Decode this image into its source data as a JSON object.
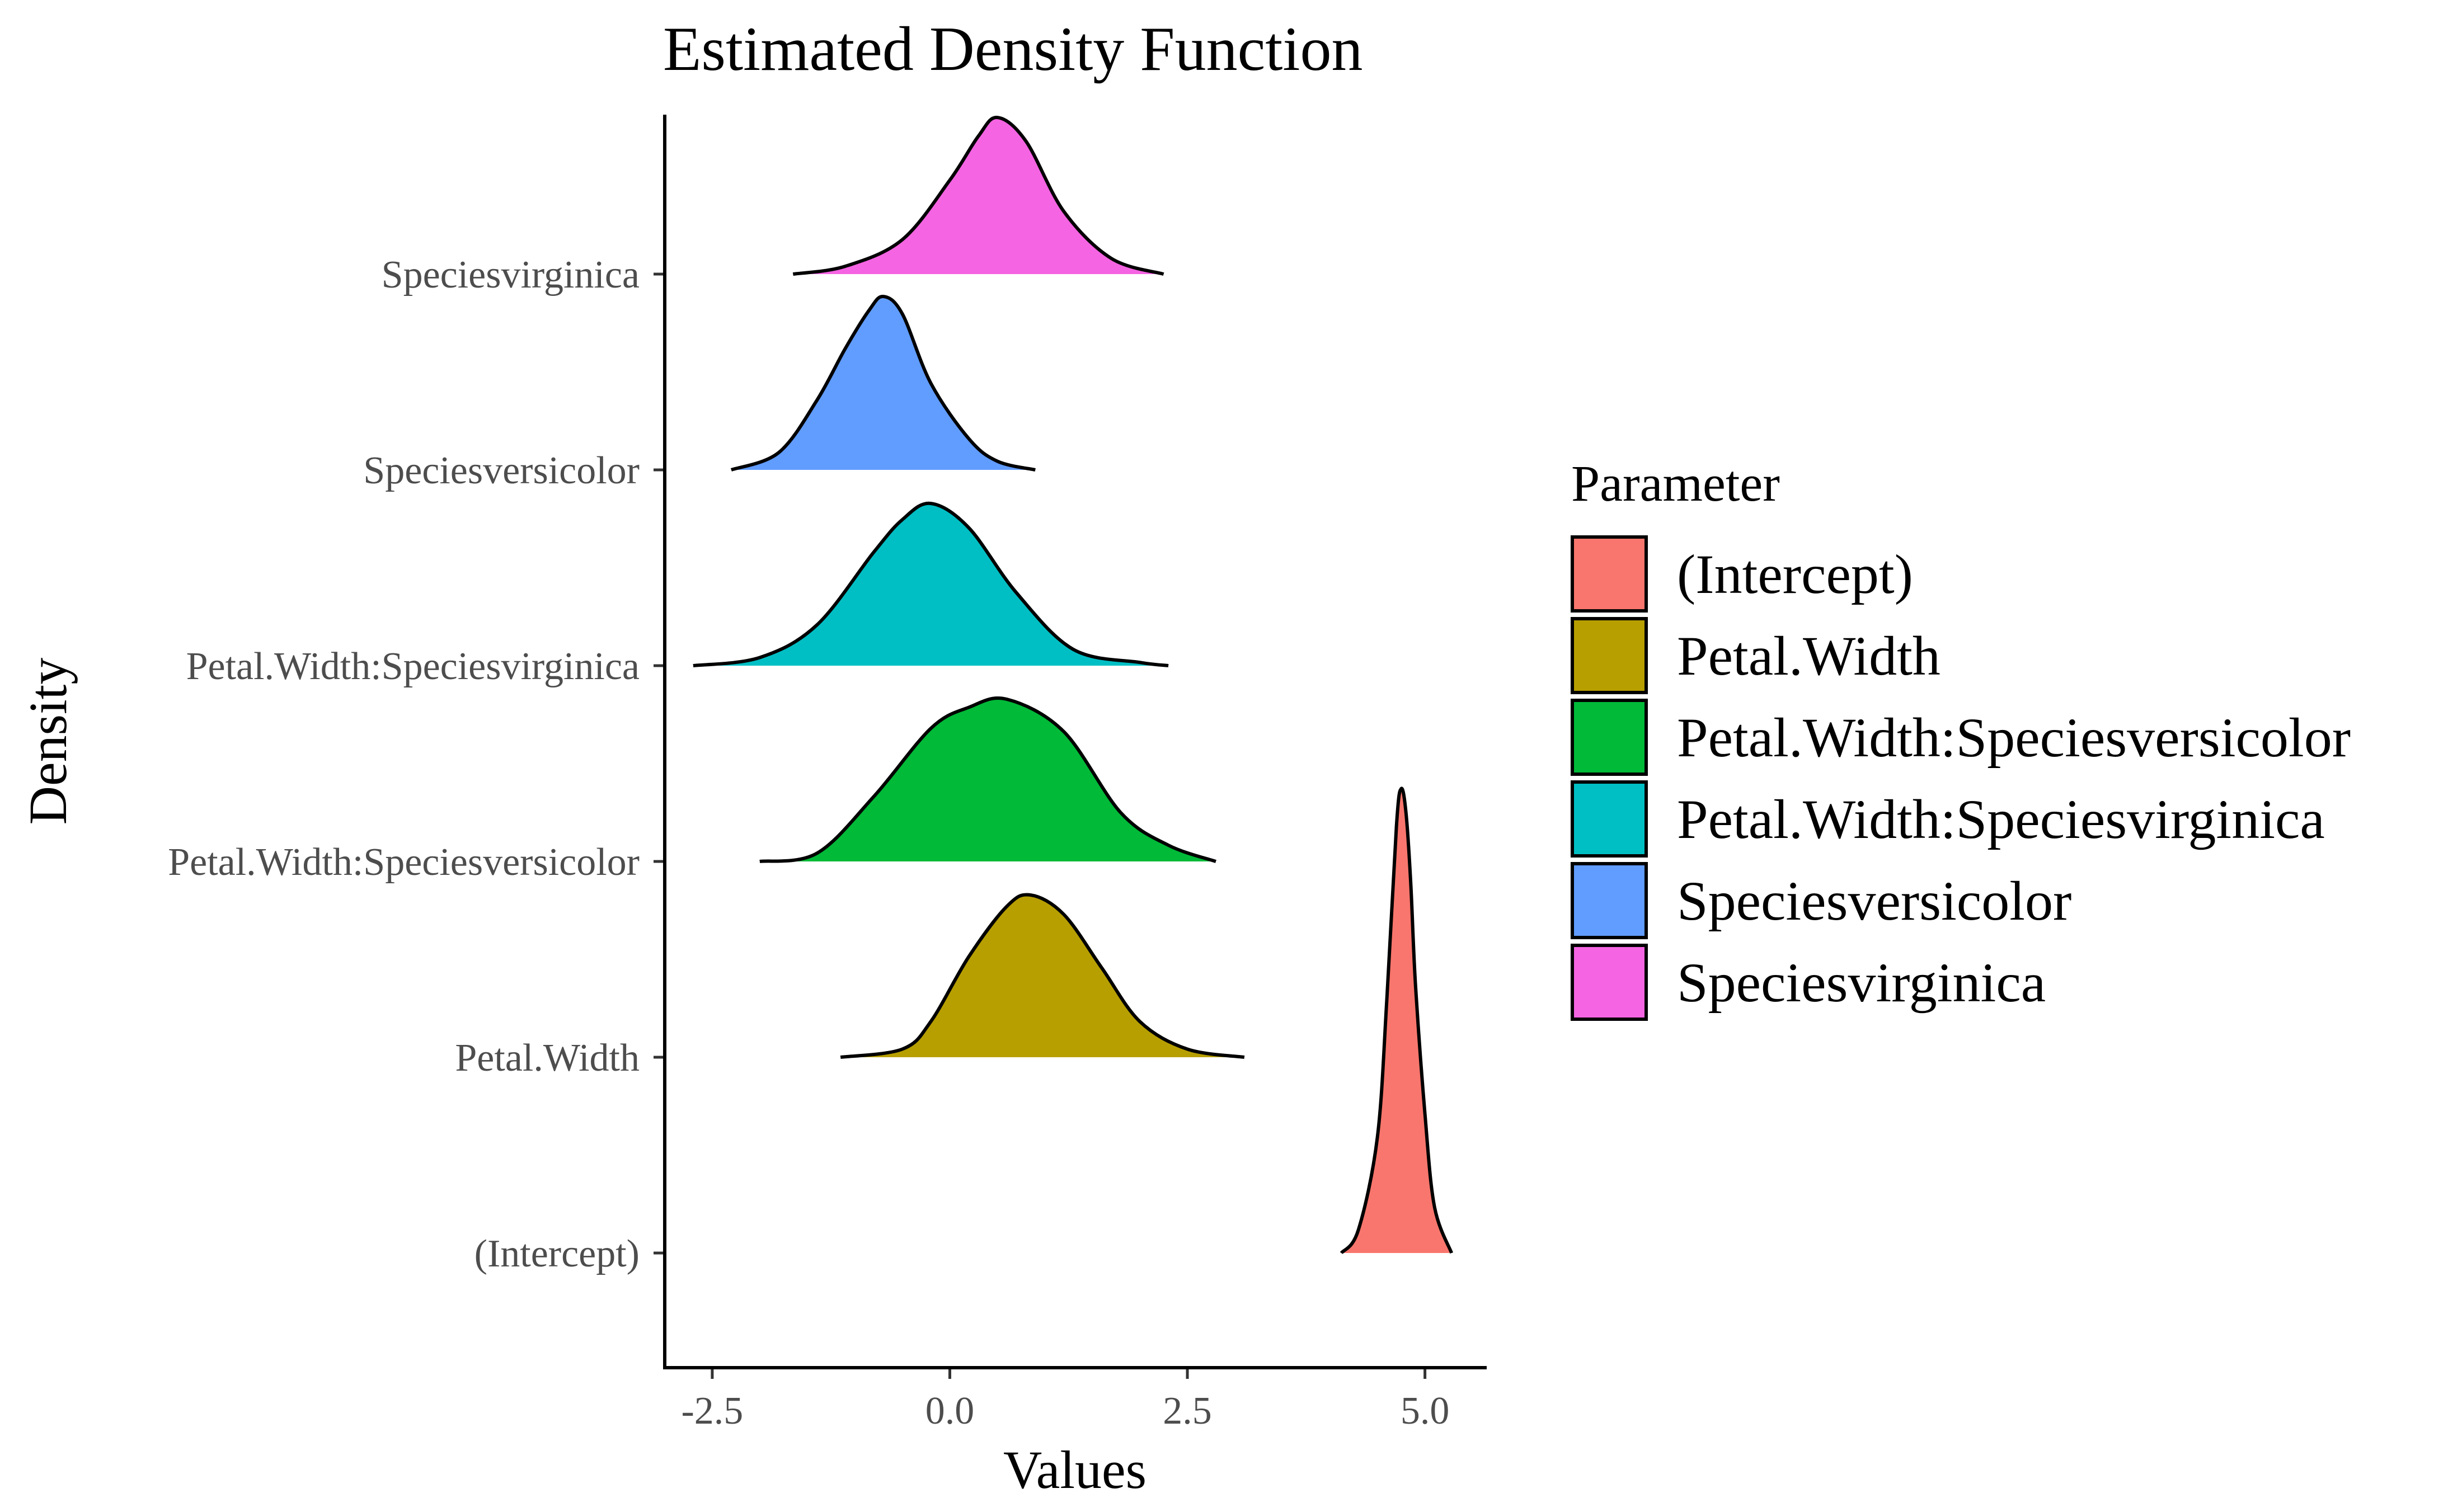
{
  "chart_data": {
    "type": "ridgeline-density",
    "title": "Estimated Density Function",
    "xlabel": "Values",
    "ylabel": "Density",
    "xlim": [
      -3.0,
      5.65
    ],
    "xticks": [
      -2.5,
      0.0,
      2.5,
      5.0
    ],
    "xtick_labels": [
      "-2.5",
      "0.0",
      "2.5",
      "5.0"
    ],
    "grid": false,
    "legend_title": "Parameter",
    "legend_position": "right",
    "series": [
      {
        "name": "(Intercept)",
        "color": "#F8766D",
        "x": [
          4.12,
          4.3,
          4.5,
          4.6,
          4.7,
          4.75,
          4.8,
          4.85,
          4.9,
          5.0,
          5.1,
          5.28
        ],
        "density": [
          0.0,
          0.05,
          0.25,
          0.55,
          0.92,
          1.0,
          0.95,
          0.8,
          0.58,
          0.3,
          0.1,
          0.0
        ]
      },
      {
        "name": "Petal.Width",
        "color": "#B79F00",
        "x": [
          -1.15,
          -0.5,
          -0.2,
          0.2,
          0.6,
          0.85,
          1.2,
          1.6,
          2.0,
          2.5,
          3.1
        ],
        "density": [
          0.0,
          0.05,
          0.22,
          0.62,
          0.93,
          1.0,
          0.88,
          0.55,
          0.22,
          0.05,
          0.0
        ]
      },
      {
        "name": "Petal.Width:Speciesversicolor",
        "color": "#00BA38",
        "x": [
          -2.0,
          -1.4,
          -0.8,
          -0.2,
          0.2,
          0.6,
          1.2,
          1.8,
          2.3,
          2.8
        ],
        "density": [
          0.0,
          0.05,
          0.4,
          0.82,
          0.95,
          1.0,
          0.8,
          0.3,
          0.1,
          0.0
        ]
      },
      {
        "name": "Petal.Width:Speciesvirginica",
        "color": "#00BFC4",
        "x": [
          -2.7,
          -2.0,
          -1.4,
          -0.8,
          -0.5,
          -0.2,
          0.2,
          0.7,
          1.3,
          2.0,
          2.3
        ],
        "density": [
          0.0,
          0.05,
          0.25,
          0.7,
          0.9,
          1.0,
          0.85,
          0.45,
          0.1,
          0.02,
          0.0
        ]
      },
      {
        "name": "Speciesversicolor",
        "color": "#619CFF",
        "x": [
          -2.3,
          -1.8,
          -1.4,
          -1.1,
          -0.85,
          -0.7,
          -0.5,
          -0.2,
          0.2,
          0.5,
          0.9
        ],
        "density": [
          0.0,
          0.1,
          0.4,
          0.7,
          0.92,
          1.0,
          0.9,
          0.5,
          0.18,
          0.05,
          0.0
        ]
      },
      {
        "name": "Speciesvirginica",
        "color": "#F564E3",
        "x": [
          -1.65,
          -1.1,
          -0.5,
          0.0,
          0.3,
          0.5,
          0.8,
          1.2,
          1.7,
          2.25
        ],
        "density": [
          0.0,
          0.05,
          0.22,
          0.6,
          0.88,
          1.0,
          0.85,
          0.4,
          0.1,
          0.0
        ]
      }
    ]
  }
}
